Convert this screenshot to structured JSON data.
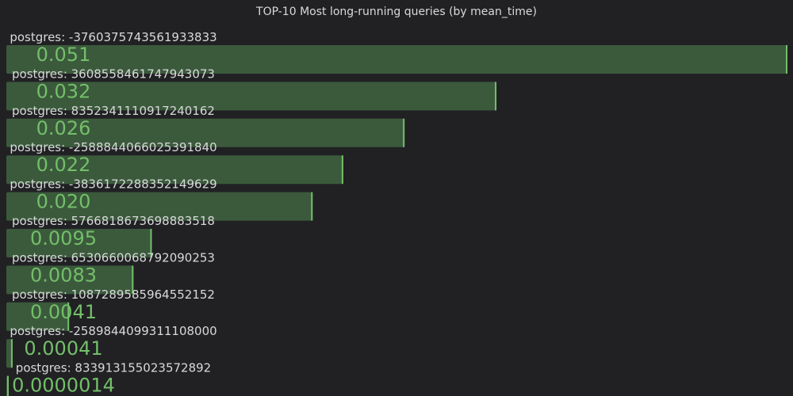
{
  "chart_data": {
    "type": "bar",
    "orientation": "horizontal",
    "title": "TOP-10 Most long-running queries (by mean_time)",
    "xlabel": "",
    "ylabel": "",
    "grid": false,
    "legend": "none",
    "categories": [
      "postgres: -3760375743561933833",
      "postgres: 3608558461747943073",
      "postgres: 8352341110917240162",
      "postgres: -2588844066025391840",
      "postgres: -3836172288352149629",
      "postgres: 5766818673698883518",
      "postgres: 6530660068792090253",
      "postgres: 1087289585964552152",
      "postgres: -2589844099311108000",
      "postgres: 833913155023572892"
    ],
    "values": [
      0.051,
      0.032,
      0.026,
      0.022,
      0.02,
      0.0095,
      0.0083,
      0.0041,
      0.00041,
      1.4e-06
    ],
    "value_labels": [
      "0.051",
      "0.032",
      "0.026",
      "0.022",
      "0.020",
      "0.0095",
      "0.0083",
      "0.0041",
      "0.00041",
      "0.0000014"
    ],
    "colors": {
      "background": "#212124",
      "bar_fill": "#3b5a3c",
      "bar_edge": "#73bf69",
      "value_text": "#73bf69",
      "label_text": "#d8d9da"
    }
  }
}
